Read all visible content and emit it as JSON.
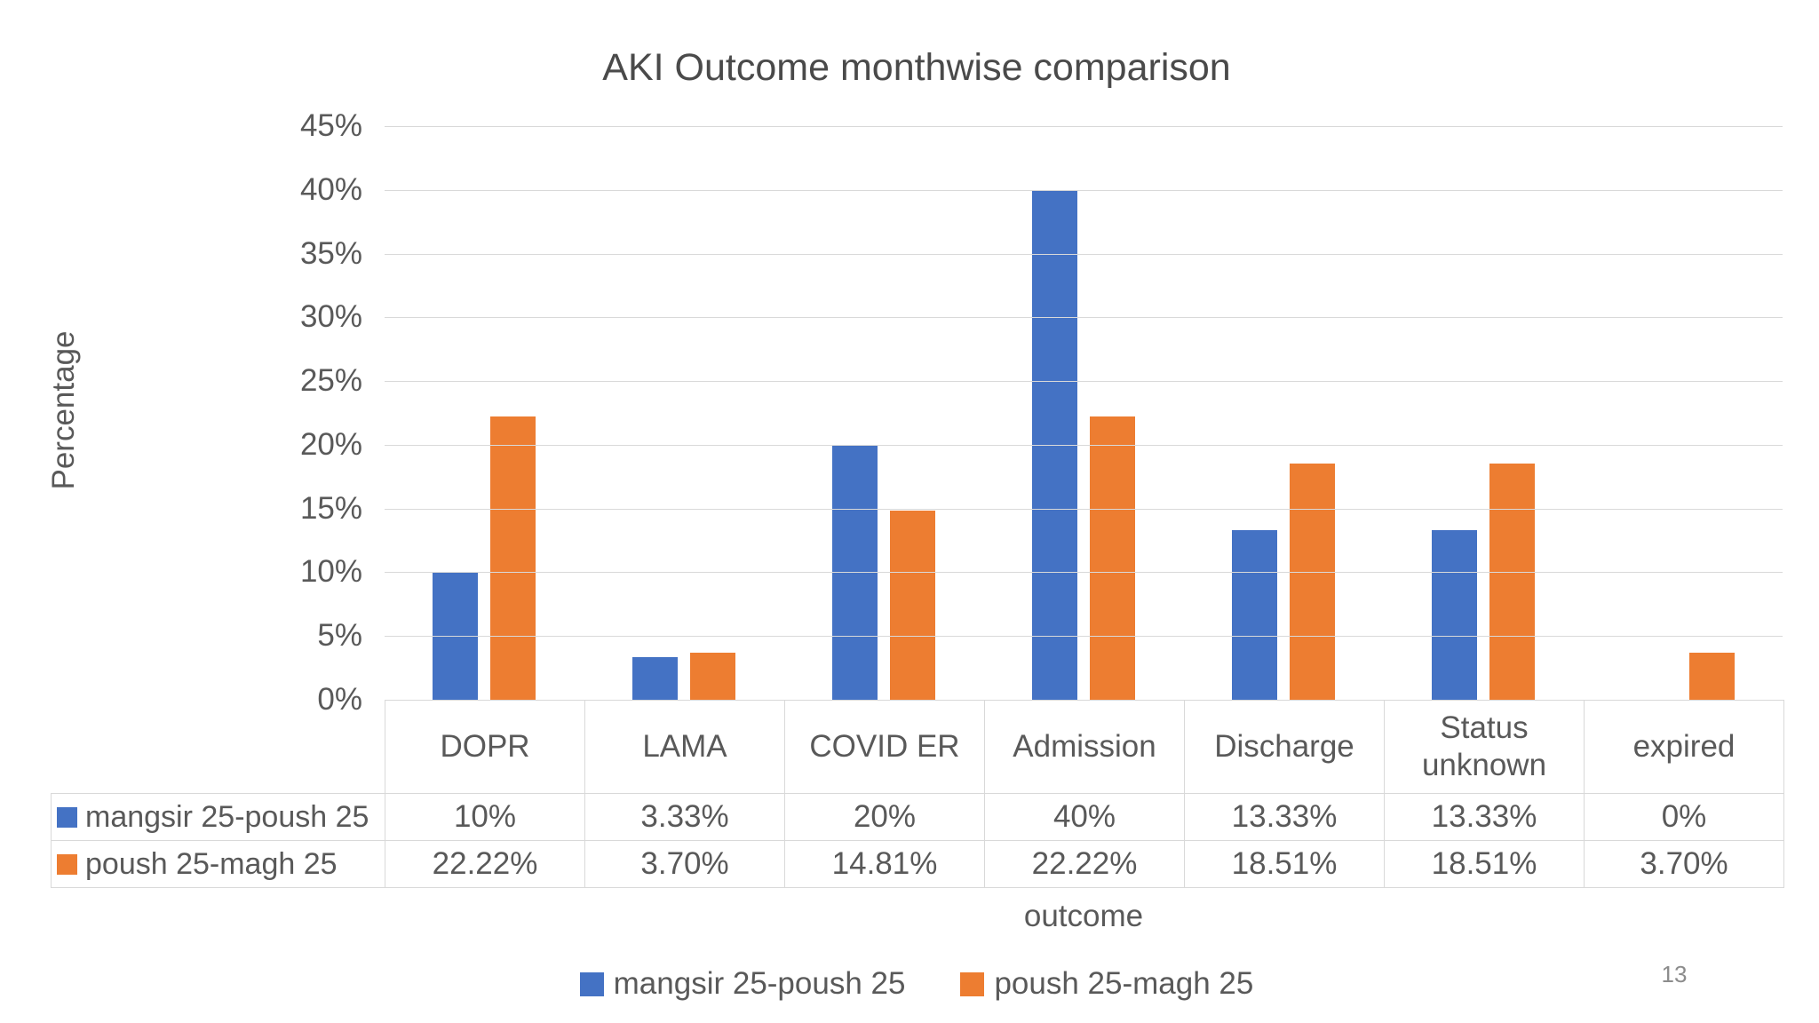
{
  "title": "AKI Outcome monthwise comparison",
  "page_number": "13",
  "chart_data": {
    "type": "bar",
    "title": "AKI Outcome monthwise comparison",
    "categories": [
      "DOPR",
      "LAMA",
      "COVID ER",
      "Admission",
      "Discharge",
      "Status unknown",
      "expired"
    ],
    "series": [
      {
        "name": "mangsir 25-poush 25",
        "color": "#4472C4",
        "values": [
          10,
          3.33,
          20,
          40,
          13.33,
          13.33,
          0
        ],
        "labels": [
          "10%",
          "3.33%",
          "20%",
          "40%",
          "13.33%",
          "13.33%",
          "0%"
        ]
      },
      {
        "name": "poush 25-magh 25",
        "color": "#ED7D31",
        "values": [
          22.22,
          3.7,
          14.81,
          22.22,
          18.51,
          18.51,
          3.7
        ],
        "labels": [
          "22.22%",
          "3.70%",
          "14.81%",
          "22.22%",
          "18.51%",
          "18.51%",
          "3.70%"
        ]
      }
    ],
    "xlabel": "outcome",
    "ylabel": "Percentage",
    "ylim": [
      0,
      45
    ],
    "ytick_step": 5,
    "ytick_labels": [
      "0%",
      "5%",
      "10%",
      "15%",
      "20%",
      "25%",
      "30%",
      "35%",
      "40%",
      "45%"
    ],
    "grid": true,
    "legend_position": "bottom",
    "data_table_shown": true,
    "colors": {
      "gridline": "#d9d9d9",
      "table_border": "#d9d9d9",
      "axis_text": "#595959",
      "title_text": "#4a4a4a",
      "page_number_text": "#8c8c8c"
    }
  }
}
